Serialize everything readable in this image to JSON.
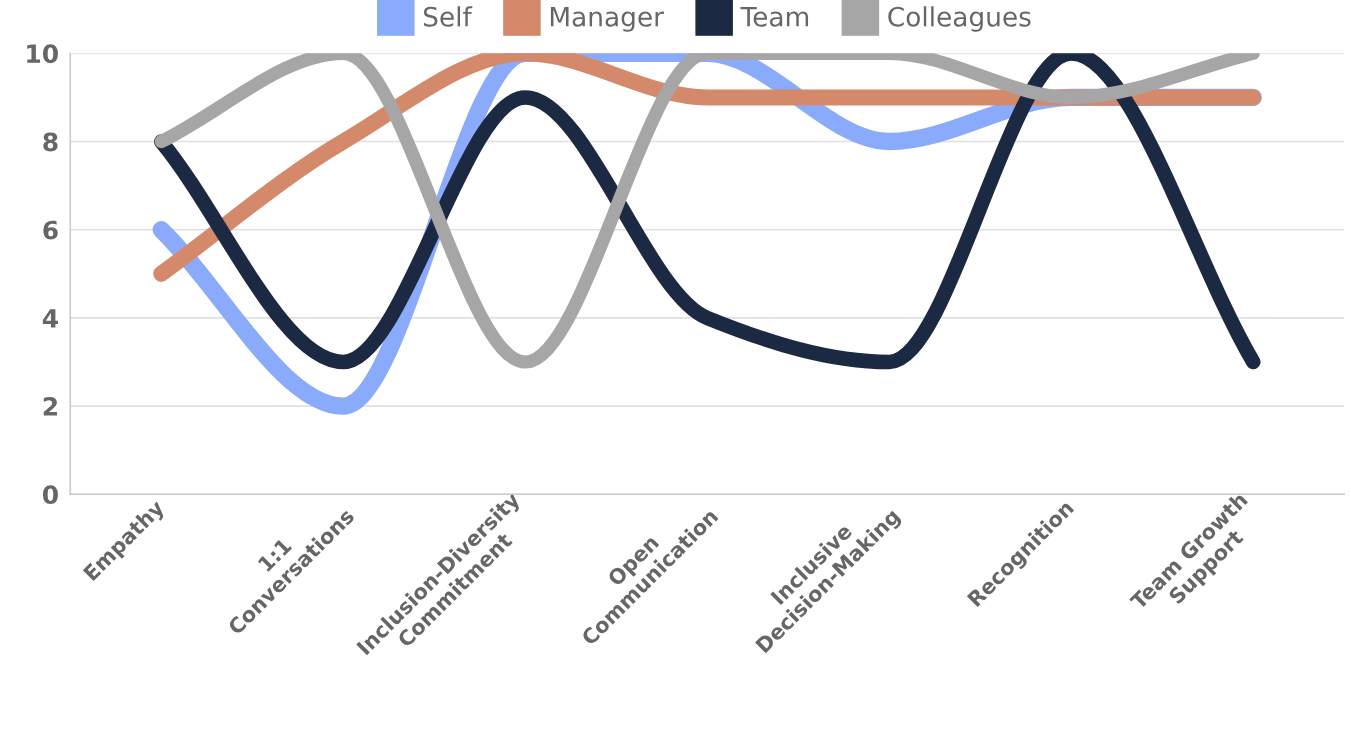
{
  "chart_data": {
    "type": "line",
    "categories": [
      "Empathy",
      "1:1\nConversations",
      "Inclusion-Diversity\nCommitment",
      "Open\nCommunication",
      "Inclusive\nDecision-Making",
      "Recognition",
      "Team Growth\nSupport"
    ],
    "series": [
      {
        "name": "Self",
        "color": "#8aaafc",
        "values": [
          6,
          2,
          10,
          10,
          8,
          9,
          9
        ]
      },
      {
        "name": "Manager",
        "color": "#d4896a",
        "values": [
          5,
          8,
          10,
          9,
          9,
          9,
          9
        ]
      },
      {
        "name": "Team",
        "color": "#1b2a42",
        "values": [
          8,
          3,
          9,
          4,
          3,
          10,
          3
        ]
      },
      {
        "name": "Colleagues",
        "color": "#a6a6a6",
        "values": [
          8,
          10,
          3,
          10,
          10,
          9,
          10
        ]
      }
    ],
    "ylim": [
      0,
      10
    ],
    "yticks": [
      0,
      2,
      4,
      6,
      8,
      10
    ],
    "grid": "y",
    "legend": "top",
    "marker": "none",
    "line_style": "solid"
  }
}
